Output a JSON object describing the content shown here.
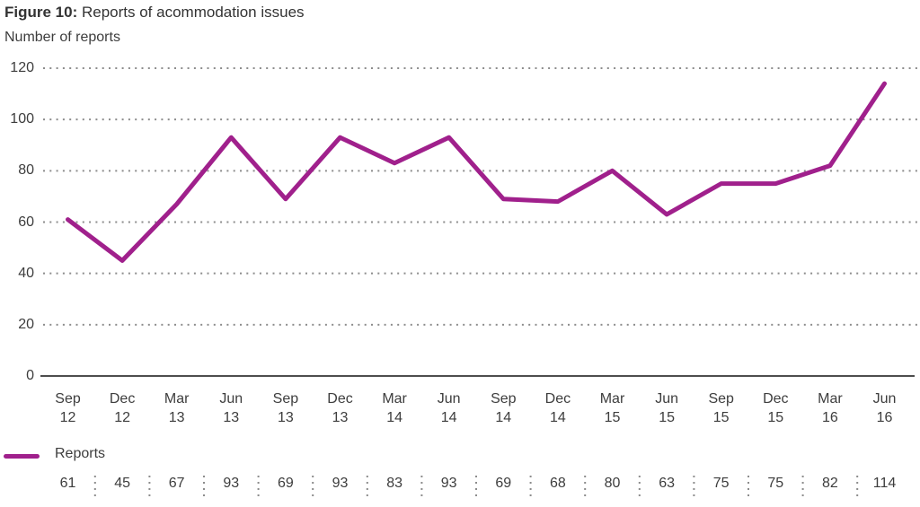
{
  "header": {
    "figure_label": "Figure 10:",
    "figure_title": "Reports of acommodation issues",
    "ylabel": "Number of reports"
  },
  "legend": {
    "label": "Reports"
  },
  "chart_data": {
    "type": "line",
    "title": "Figure 10: Reports of acommodation issues",
    "xlabel": "",
    "ylabel": "Number of reports",
    "categories": [
      "Sep 12",
      "Dec 12",
      "Mar 13",
      "Jun 13",
      "Sep 13",
      "Dec 13",
      "Mar 14",
      "Jun 14",
      "Sep 14",
      "Dec 14",
      "Mar 15",
      "Jun 15",
      "Sep 15",
      "Dec 15",
      "Mar 16",
      "Jun 16"
    ],
    "series": [
      {
        "name": "Reports",
        "color": "#a0208c",
        "values": [
          61,
          45,
          67,
          93,
          69,
          93,
          83,
          93,
          69,
          68,
          80,
          63,
          75,
          75,
          82,
          114
        ]
      }
    ],
    "y_ticks": [
      0,
      20,
      40,
      60,
      80,
      100,
      120
    ],
    "ylim": [
      0,
      120
    ],
    "grid": "horizontal-dotted",
    "legend_position": "bottom-left",
    "value_row_visible": true
  },
  "colors": {
    "line": "#a0208c",
    "text": "#3d3d3d",
    "grid": "#8c8c8c",
    "axis": "#4d4d4d"
  }
}
